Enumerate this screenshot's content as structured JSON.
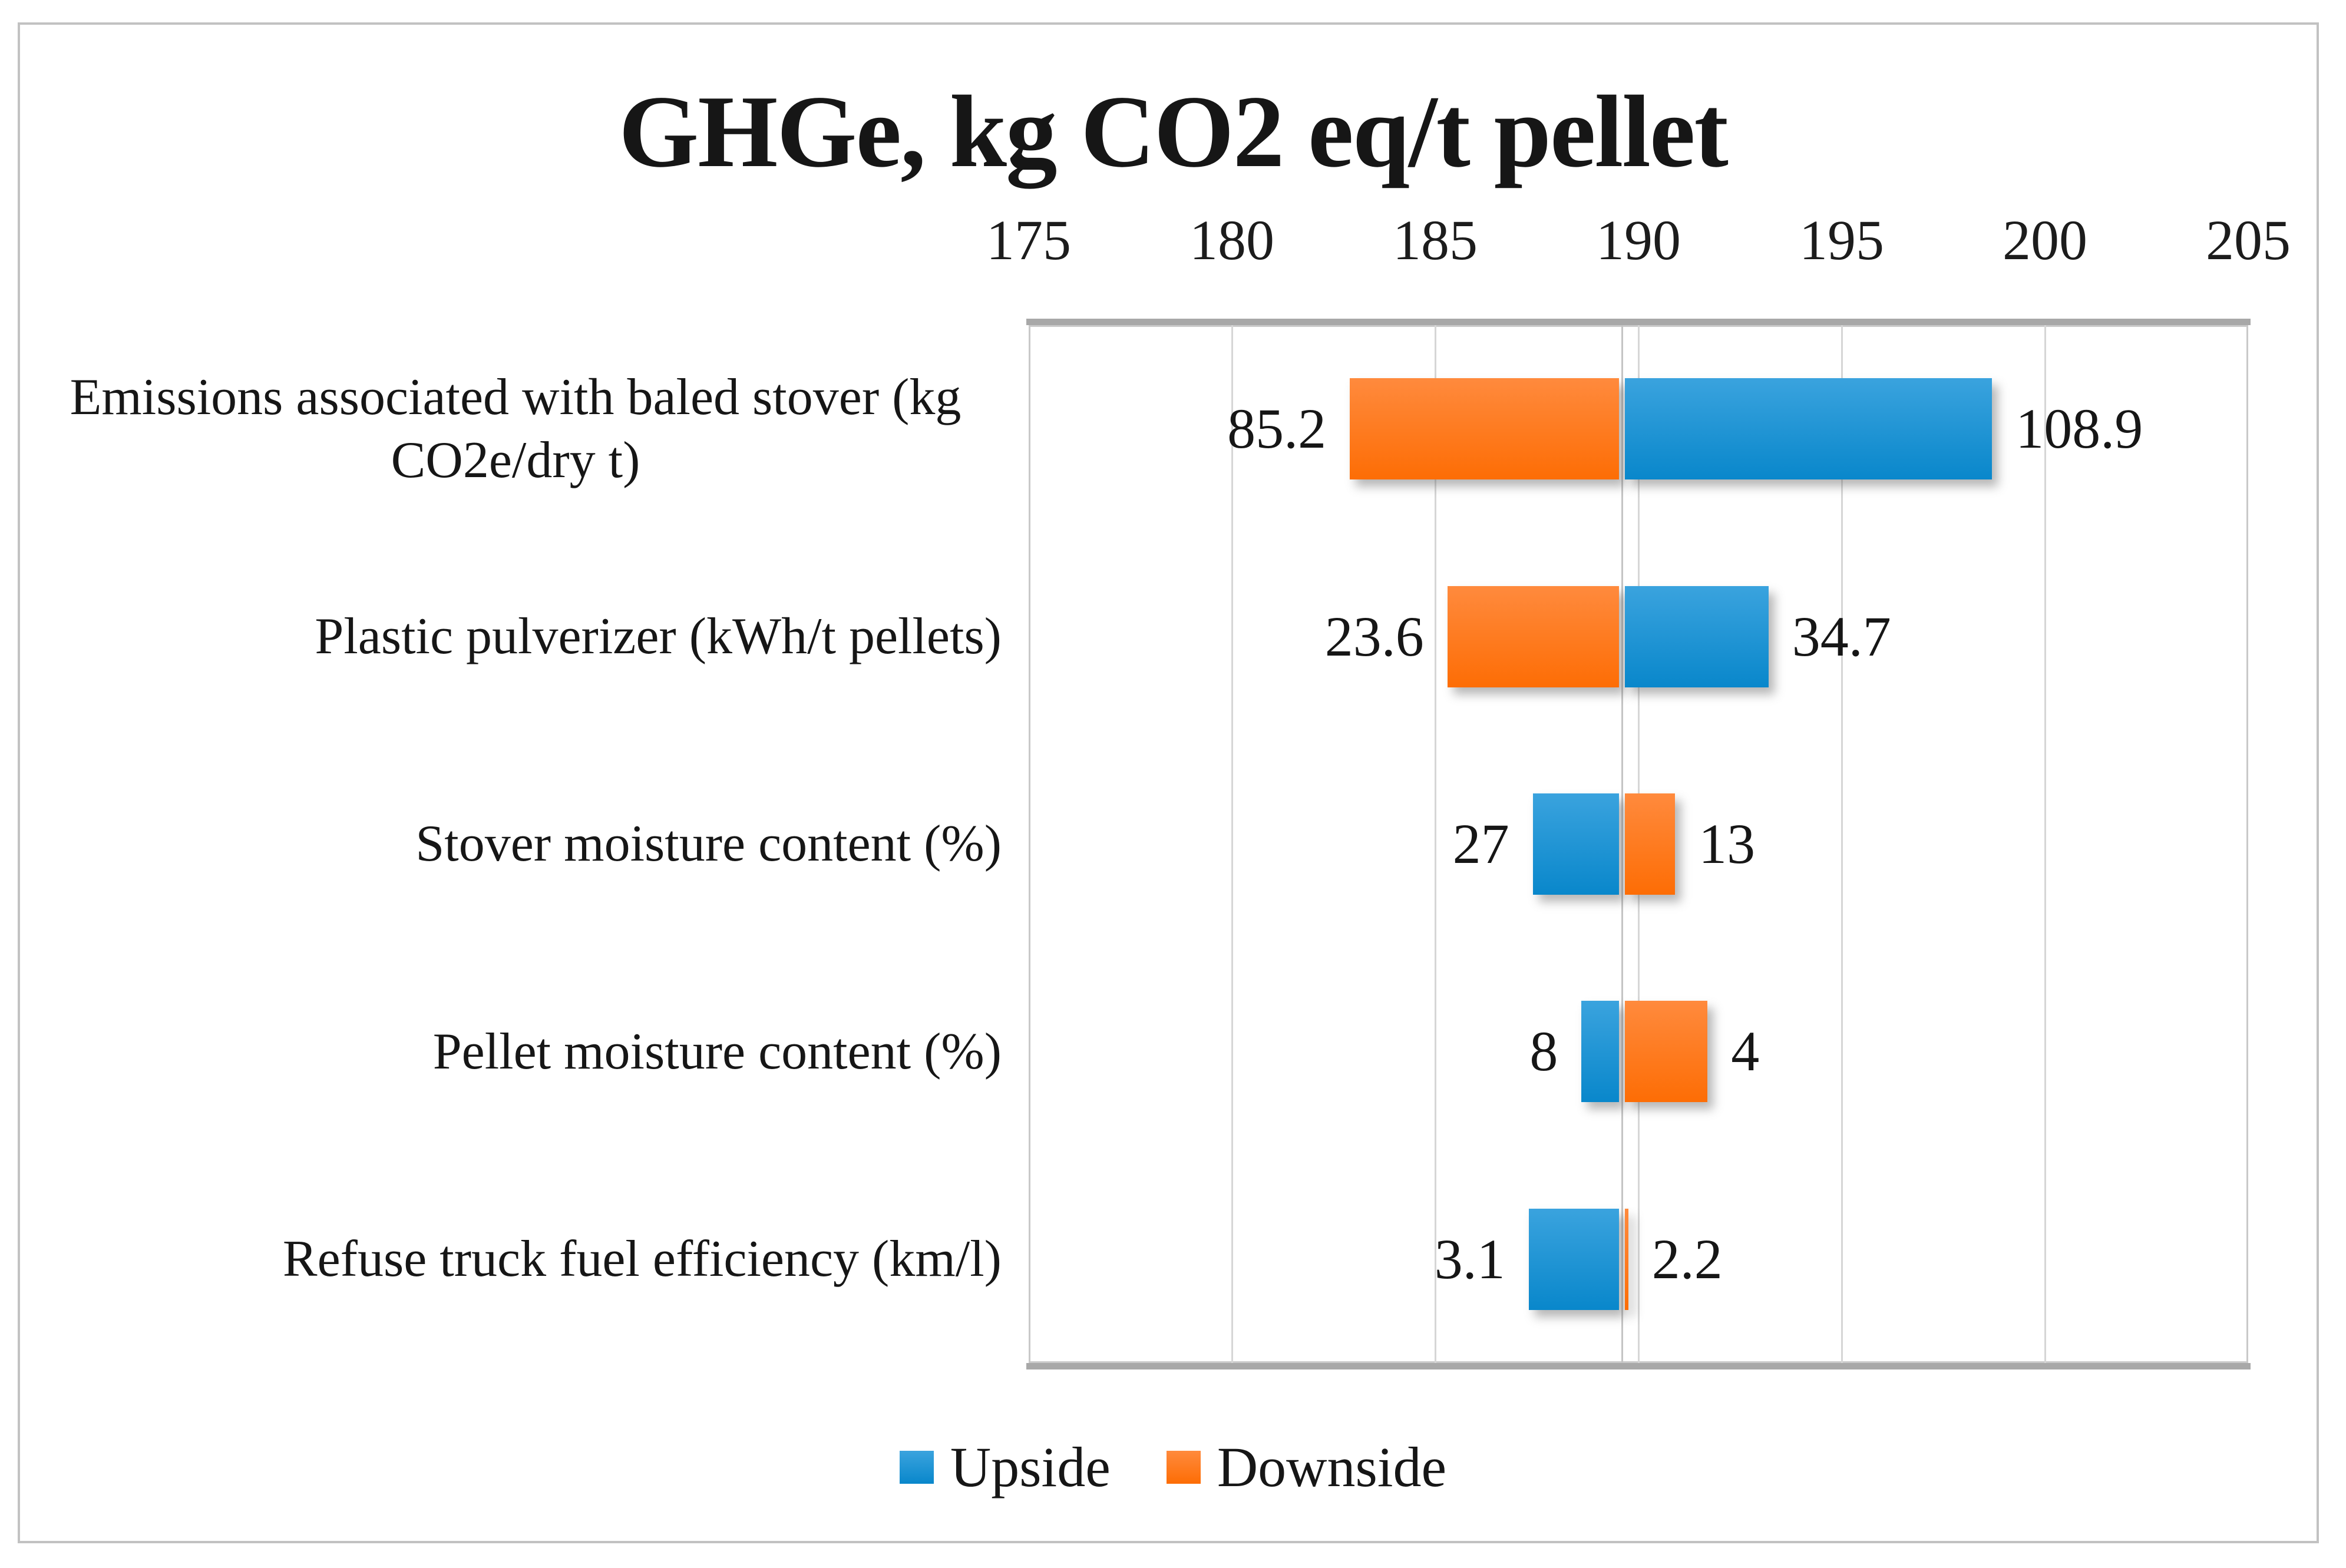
{
  "title": "GHGe, kg CO2 eq/t pellet",
  "legend": {
    "position": "bottom",
    "items": [
      {
        "label": "Upside",
        "color": "#1490d1"
      },
      {
        "label": "Downside",
        "color": "#fe7b21"
      }
    ]
  },
  "colors": {
    "upside_blue": "#1490d1",
    "upside_gradient_top": "#3aa3de",
    "upside_gradient_bottom": "#0987cb",
    "downside_orange": "#fe7b21",
    "downside_gradient_top": "#ff8a3d",
    "downside_gradient_bottom": "#fd6d05",
    "gridline": "#d6d6d6",
    "plot_border": "#c9c9c9",
    "axis_band": "#a8a8a8",
    "text": "#161616"
  },
  "chart_data": {
    "type": "bar",
    "subtype": "tornado-horizontal",
    "title": "GHGe, kg CO2 eq/t pellet",
    "xlabel": "",
    "ylabel": "",
    "axis": {
      "position": "top",
      "min": 175,
      "max": 205,
      "step": 5,
      "ticks": [
        175,
        180,
        185,
        190,
        195,
        200,
        205
      ]
    },
    "baseline_value": 189.6,
    "grid": true,
    "legend_position": "bottom",
    "series": [
      {
        "name": "Upside",
        "color": "#1490d1"
      },
      {
        "name": "Downside",
        "color": "#fe7b21"
      }
    ],
    "categories": [
      "Emissions associated with baled stover (kg CO2e/dry t)",
      "Plastic pulverizer (kWh/t pellets)",
      "Stover moisture content (%)",
      "Pellet moisture content (%)",
      "Refuse truck fuel efficiency (km/l)"
    ],
    "rows": [
      {
        "category": "Emissions associated with baled stover (kg CO2e/dry t)",
        "left_series": "Downside",
        "left_label": "85.2",
        "left_end_ghge": 182.9,
        "right_series": "Upside",
        "right_label": "108.9",
        "right_end_ghge": 198.7
      },
      {
        "category": "Plastic pulverizer (kWh/t pellets)",
        "left_series": "Downside",
        "left_label": "23.6",
        "left_end_ghge": 185.3,
        "right_series": "Upside",
        "right_label": "34.7",
        "right_end_ghge": 193.2
      },
      {
        "category": "Stover moisture content (%)",
        "left_series": "Upside",
        "left_label": "27",
        "left_end_ghge": 187.4,
        "right_series": "Downside",
        "right_label": "13",
        "right_end_ghge": 190.9
      },
      {
        "category": "Pellet moisture content (%)",
        "left_series": "Upside",
        "left_label": "8",
        "left_end_ghge": 188.6,
        "right_series": "Downside",
        "right_label": "4",
        "right_end_ghge": 191.7
      },
      {
        "category": "Refuse truck fuel efficiency (km/l)",
        "left_series": "Upside",
        "left_label": "3.1",
        "left_end_ghge": 187.3,
        "right_series": "Downside",
        "right_label": "2.2",
        "right_end_ghge": 189.75
      }
    ]
  }
}
